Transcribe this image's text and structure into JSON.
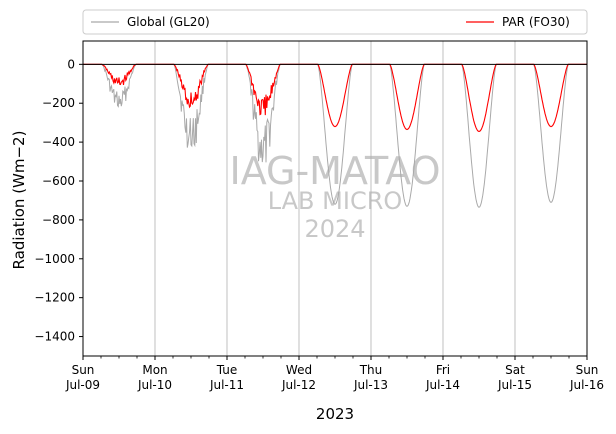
{
  "chart_data": {
    "type": "line",
    "xlabel": "2023",
    "ylabel": "Radiation ($Wm−2$)",
    "ylabel_display": "Radiation (Wm−2)",
    "ylim": [
      -1500,
      120
    ],
    "xlim_days": [
      "2023-07-09",
      "2023-07-16"
    ],
    "grid": "vertical major lines",
    "legend_position": "top, above plot",
    "yticks": [
      0,
      -200,
      -400,
      -600,
      -800,
      -1000,
      -1200,
      -1400
    ],
    "xticks": [
      {
        "day": "Sun",
        "date": "Jul-09"
      },
      {
        "day": "Mon",
        "date": "Jul-10"
      },
      {
        "day": "Tue",
        "date": "Jul-11"
      },
      {
        "day": "Wed",
        "date": "Jul-12"
      },
      {
        "day": "Thu",
        "date": "Jul-13"
      },
      {
        "day": "Fri",
        "date": "Jul-14"
      },
      {
        "day": "Sat",
        "date": "Jul-15"
      },
      {
        "day": "Sun",
        "date": "Jul-16"
      }
    ],
    "watermark": [
      "IAG-MATAO",
      "LAB MICRO",
      "2024"
    ],
    "series": [
      {
        "name": "Global (GL20)",
        "color": "#a9a9a9",
        "daily_min": [
          -230,
          -440,
          -520,
          -720,
          -730,
          -735,
          -710
        ]
      },
      {
        "name": "PAR (FO30)",
        "color": "#ff0000",
        "daily_min": [
          -110,
          -220,
          -270,
          -320,
          -335,
          -345,
          -320
        ]
      }
    ]
  }
}
